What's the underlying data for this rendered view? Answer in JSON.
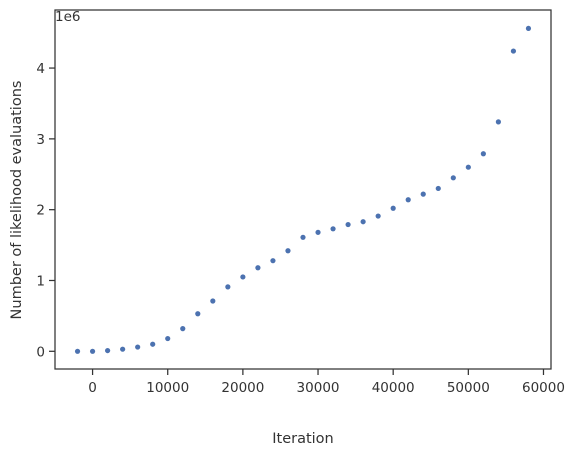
{
  "chart_data": {
    "type": "scatter",
    "title": "",
    "xlabel": "Iteration",
    "ylabel": "Number of likelihood evaluations",
    "y_offset_label": "1e6",
    "xlim": [
      -5000,
      61000
    ],
    "ylim": [
      -0.25,
      4.82
    ],
    "xticks": [
      0,
      10000,
      20000,
      30000,
      40000,
      50000,
      60000
    ],
    "xtick_labels": [
      "0",
      "10000",
      "20000",
      "30000",
      "40000",
      "50000",
      "60000"
    ],
    "yticks": [
      0,
      1,
      2,
      3,
      4
    ],
    "ytick_labels": [
      "0",
      "1",
      "2",
      "3",
      "4"
    ],
    "grid": false,
    "marker_color": "#4c72b0",
    "series": [
      {
        "x": [
          -2000,
          0,
          2000,
          4000,
          6000,
          8000,
          10000,
          12000,
          14000,
          16000,
          18000,
          20000,
          22000,
          24000,
          26000,
          28000,
          30000,
          32000,
          34000,
          36000,
          38000,
          40000,
          42000,
          44000,
          46000,
          48000,
          50000,
          52000,
          54000,
          56000,
          58000
        ],
        "y": [
          0.0,
          0.0,
          0.01,
          0.03,
          0.06,
          0.1,
          0.18,
          0.32,
          0.53,
          0.71,
          0.91,
          1.05,
          1.18,
          1.28,
          1.42,
          1.61,
          1.68,
          1.73,
          1.79,
          1.83,
          1.91,
          2.02,
          2.14,
          2.22,
          2.3,
          2.45,
          2.6,
          2.79,
          3.24,
          4.24,
          4.56
        ]
      }
    ]
  }
}
